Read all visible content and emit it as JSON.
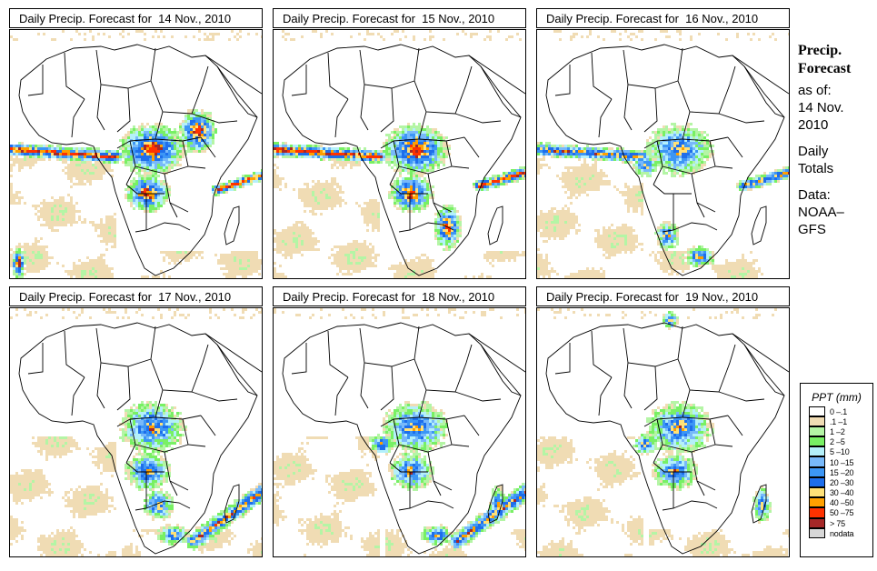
{
  "title_prefix": "Daily Precip. Forecast for",
  "panels": [
    {
      "label": "Daily Precip. Forecast for  14 Nov., 2010",
      "date": "14 Nov., 2010",
      "intensity": "high",
      "wet_regions": [
        "gulf-of-guinea-band",
        "congo-basin",
        "east-africa",
        "mozambique-channel-band",
        "angola",
        "south-atlantic-lower-left"
      ]
    },
    {
      "label": "Daily Precip. Forecast for  15 Nov., 2010",
      "date": "15 Nov., 2010",
      "intensity": "high",
      "wet_regions": [
        "gulf-of-guinea-band",
        "congo-basin",
        "angola",
        "indian-ocean-band",
        "southeast-africa"
      ]
    },
    {
      "label": "Daily Precip. Forecast for  16 Nov., 2010",
      "date": "16 Nov., 2010",
      "intensity": "medium",
      "wet_regions": [
        "gulf-of-guinea-band",
        "cameroon-gabon",
        "congo-basin",
        "namibia-coast",
        "south-africa",
        "indian-ocean-band"
      ]
    },
    {
      "label": "Daily Precip. Forecast for  17 Nov., 2010",
      "date": "17 Nov., 2010",
      "intensity": "medium",
      "wet_regions": [
        "congo-basin",
        "angola",
        "botswana",
        "south-africa",
        "southeast-ocean"
      ]
    },
    {
      "label": "Daily Precip. Forecast for  18 Nov., 2010",
      "date": "18 Nov., 2010",
      "intensity": "medium",
      "wet_regions": [
        "cameroon-gabon",
        "congo-basin",
        "angola",
        "south-africa",
        "madagascar",
        "southeast-ocean"
      ]
    },
    {
      "label": "Daily Precip. Forecast for  19 Nov., 2010",
      "date": "19 Nov., 2010",
      "intensity": "medium",
      "wet_regions": [
        "cameroon-gabon",
        "congo-basin",
        "angola",
        "madagascar",
        "mediterranean"
      ]
    }
  ],
  "side_info": {
    "heading_line1": "Precip.",
    "heading_line2": "Forecast",
    "as_of_label": "as of:",
    "as_of_date_line1": "14 Nov.",
    "as_of_date_line2": "2010",
    "totals_line1": "Daily",
    "totals_line2": "Totals",
    "data_line1": "Data:",
    "data_line2": "NOAA–",
    "data_line3": "GFS"
  },
  "legend": {
    "title": "PPT (mm)",
    "classes": [
      {
        "label": "0 –.1",
        "color": "#ffffff"
      },
      {
        "label": ".1 –1",
        "color": "#f0dcb4"
      },
      {
        "label": "1 –2",
        "color": "#b4f5a5"
      },
      {
        "label": "2 –5",
        "color": "#78f064"
      },
      {
        "label": "5 –10",
        "color": "#b4f0fa"
      },
      {
        "label": "10 –15",
        "color": "#78b9fa"
      },
      {
        "label": "15 –20",
        "color": "#3c96f5"
      },
      {
        "label": "20 –30",
        "color": "#1e6eeb"
      },
      {
        "label": "30 –40",
        "color": "#ffe178"
      },
      {
        "label": "40 –50",
        "color": "#ffa000"
      },
      {
        "label": "50 –75",
        "color": "#ff3200"
      },
      {
        "label": "> 75",
        "color": "#a52828"
      },
      {
        "label": "nodata",
        "color": "#d7d7d7"
      }
    ]
  }
}
